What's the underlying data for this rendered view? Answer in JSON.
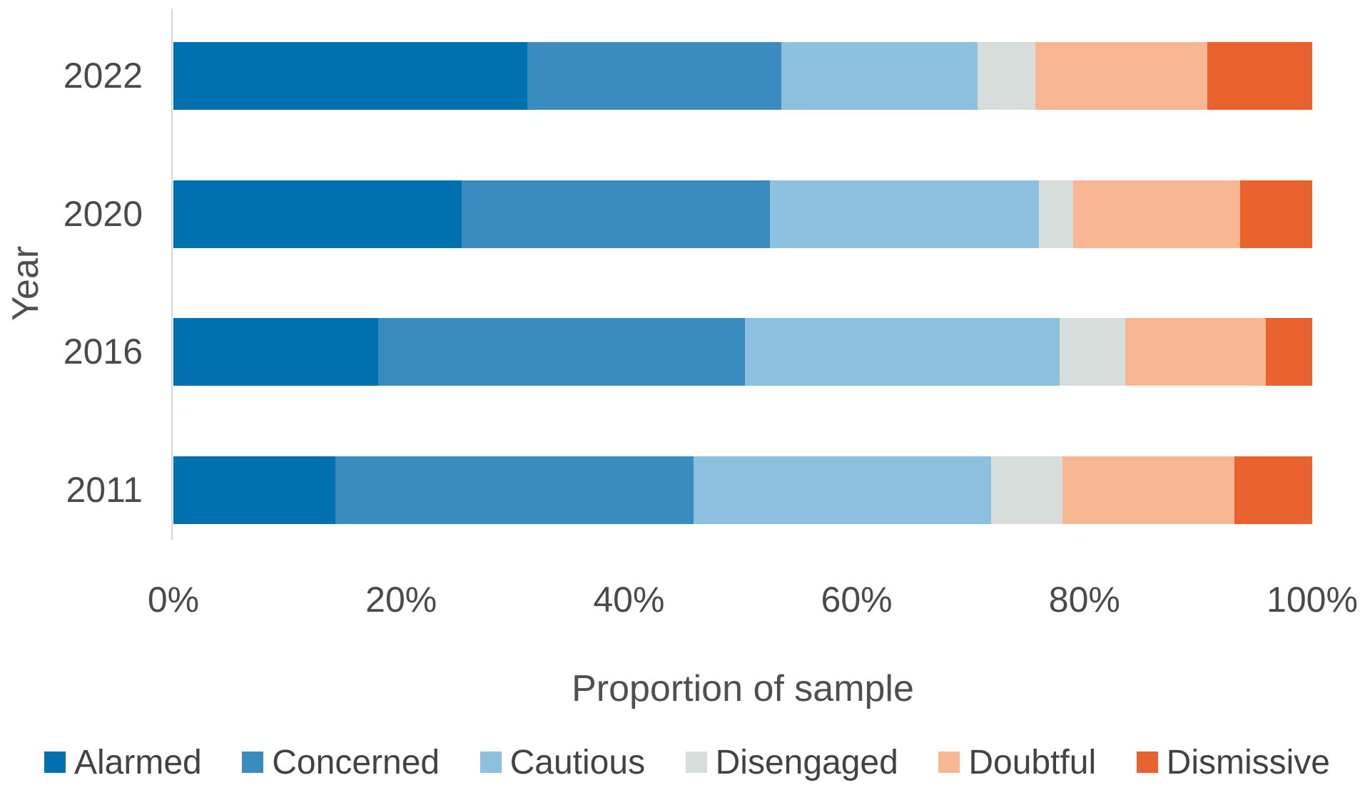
{
  "chart_data": {
    "type": "bar",
    "orientation": "horizontal",
    "stacked": true,
    "title": "",
    "xlabel": "Proportion of sample",
    "ylabel": "Year",
    "categories": [
      "2022",
      "2020",
      "2016",
      "2011"
    ],
    "series": [
      {
        "name": "Alarmed",
        "color": "#0070B1",
        "values": [
          31.1,
          25.3,
          18.0,
          14.2
        ]
      },
      {
        "name": "Concerned",
        "color": "#3A8CC0",
        "values": [
          22.3,
          27.1,
          32.2,
          31.5
        ]
      },
      {
        "name": "Cautious",
        "color": "#8DC0DE",
        "values": [
          17.2,
          23.6,
          27.6,
          26.1
        ]
      },
      {
        "name": "Disengaged",
        "color": "#D7DDDB",
        "values": [
          5.1,
          3.0,
          5.8,
          6.3
        ]
      },
      {
        "name": "Doubtful",
        "color": "#F8B792",
        "values": [
          15.1,
          14.7,
          12.3,
          15.1
        ]
      },
      {
        "name": "Dismissive",
        "color": "#E9612D",
        "values": [
          9.2,
          6.3,
          4.1,
          6.8
        ]
      }
    ],
    "x_ticks": [
      {
        "value": 0,
        "label": "0%"
      },
      {
        "value": 20,
        "label": "20%"
      },
      {
        "value": 40,
        "label": "40%"
      },
      {
        "value": 60,
        "label": "60%"
      },
      {
        "value": 80,
        "label": "80%"
      },
      {
        "value": 100,
        "label": "100%"
      }
    ],
    "xlim": [
      0,
      100
    ],
    "grid": false,
    "legend_position": "bottom"
  },
  "styles": {
    "background": "#FFFFFF",
    "axis_line_color": "#D6D6D6",
    "tick_label_color": "#4A4A4A",
    "axis_title_color": "#4F4F4F",
    "legend_text_color": "#424242"
  }
}
